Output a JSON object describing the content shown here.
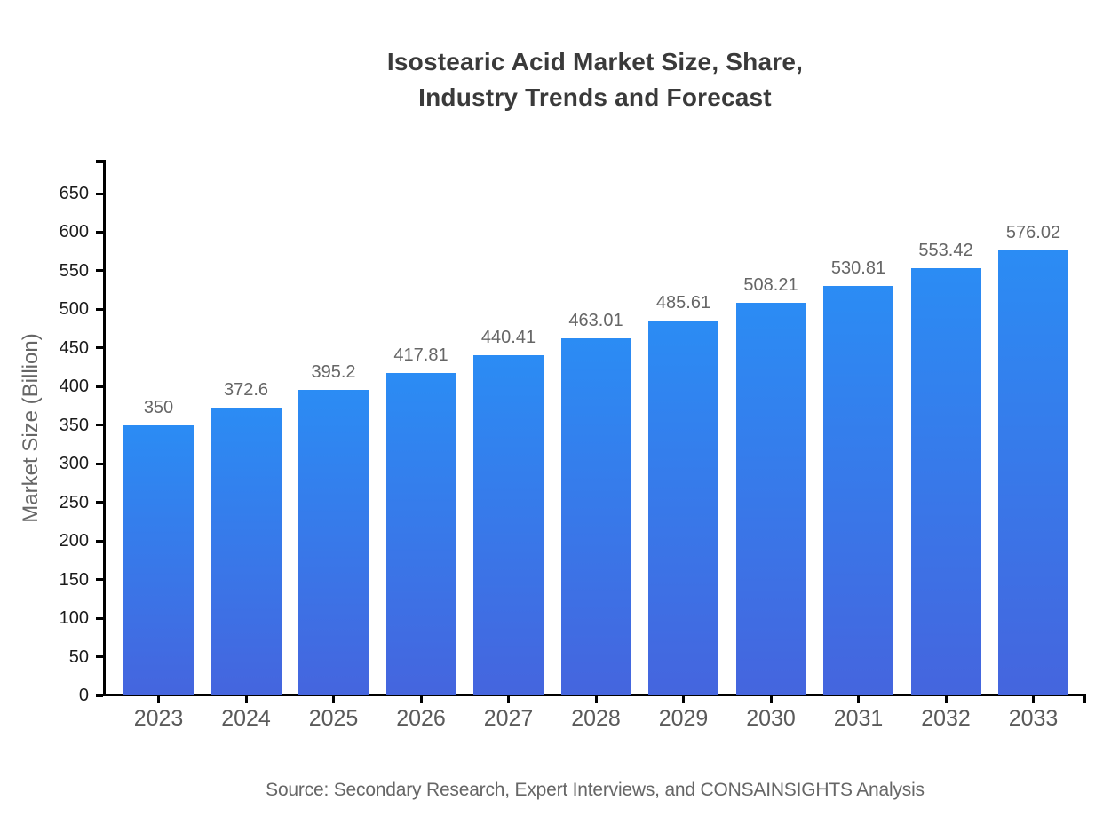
{
  "chart_data": {
    "type": "bar",
    "title": "Isostearic Acid Market Size, Share,\nIndustry Trends and Forecast",
    "xlabel": "",
    "ylabel": "Market Size (Billion)",
    "categories": [
      "2023",
      "2024",
      "2025",
      "2026",
      "2027",
      "2028",
      "2029",
      "2030",
      "2031",
      "2032",
      "2033"
    ],
    "values": [
      350,
      372.6,
      395.2,
      417.81,
      440.41,
      463.01,
      485.61,
      508.21,
      530.81,
      553.42,
      576.02
    ],
    "value_labels": [
      "350",
      "372.6",
      "395.2",
      "417.81",
      "440.41",
      "463.01",
      "485.61",
      "508.21",
      "530.81",
      "553.42",
      "576.02"
    ],
    "yticks": [
      0,
      50,
      100,
      150,
      200,
      250,
      300,
      350,
      400,
      450,
      500,
      550,
      600,
      650
    ],
    "ylim": [
      0,
      692
    ],
    "grid": false,
    "legend": null
  },
  "source_note": "Source: Secondary Research, Expert Interviews, and CONSAINSIGHTS Analysis",
  "colors": {
    "bar_gradient_top": "#2b8cf4",
    "bar_gradient_bottom": "#4565de",
    "axis": "#000000",
    "title_text": "#3a3a3a",
    "ytick_text": "#1a1a1a",
    "xtick_text": "#5a5a5a",
    "value_text": "#666666",
    "muted_text": "#666666"
  }
}
